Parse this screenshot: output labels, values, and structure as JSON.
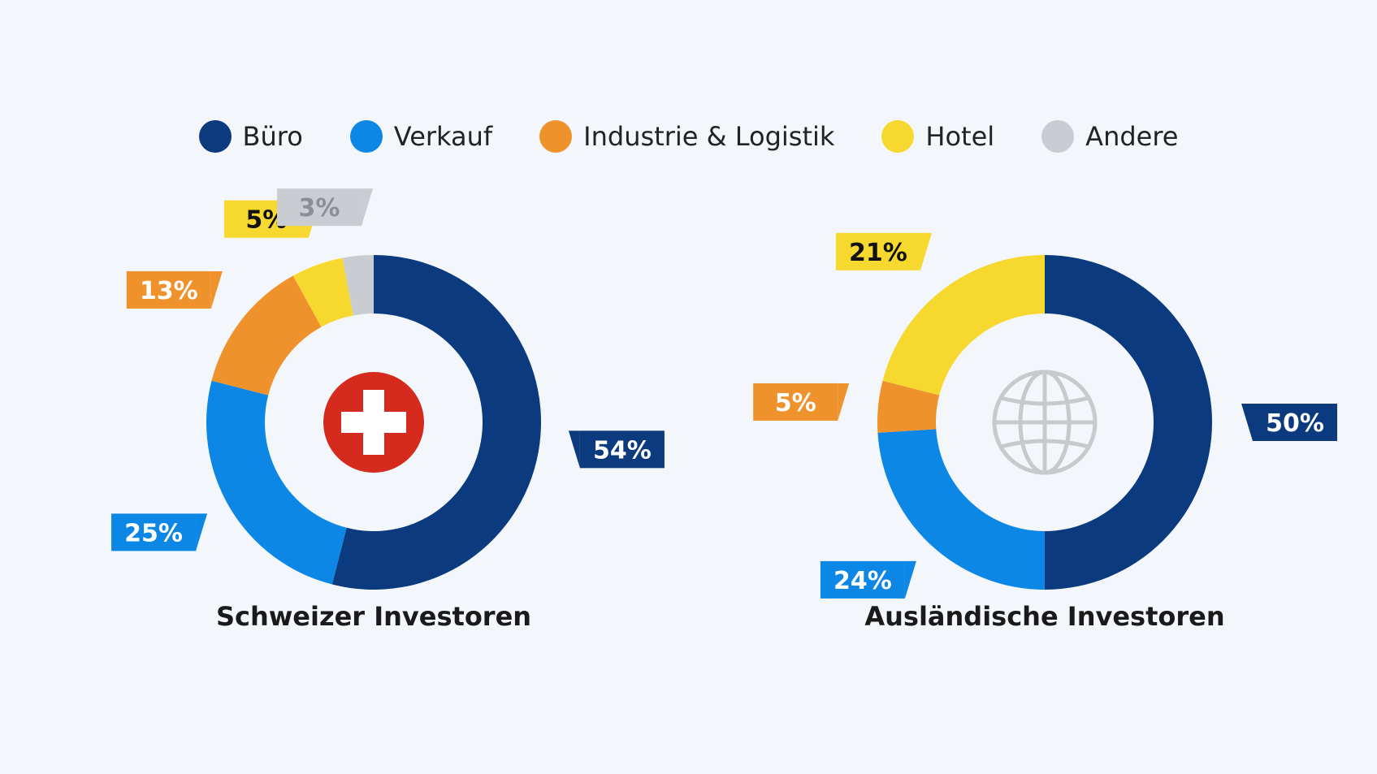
{
  "legend": [
    {
      "label": "Büro",
      "color": "#0b3a7e"
    },
    {
      "label": "Verkauf",
      "color": "#0d87e6"
    },
    {
      "label": "Industrie & Logistik",
      "color": "#ef922c"
    },
    {
      "label": "Hotel",
      "color": "#f6d82f"
    },
    {
      "label": "Andere",
      "color": "#c9ccd1"
    }
  ],
  "chart_data": [
    {
      "type": "pie",
      "title": "Schweizer Investoren",
      "center_icon": "swiss-flag-icon",
      "categories": [
        "Büro",
        "Verkauf",
        "Industrie & Logistik",
        "Hotel",
        "Andere"
      ],
      "values": [
        54,
        25,
        13,
        5,
        3
      ],
      "labels": [
        "54%",
        "25%",
        "13%",
        "5%",
        "3%"
      ]
    },
    {
      "type": "pie",
      "title": "Ausländische Investoren",
      "center_icon": "globe-icon",
      "categories": [
        "Büro",
        "Verkauf",
        "Industrie & Logistik",
        "Hotel"
      ],
      "values": [
        50,
        24,
        5,
        21
      ],
      "labels": [
        "50%",
        "24%",
        "5%",
        "21%"
      ]
    }
  ]
}
